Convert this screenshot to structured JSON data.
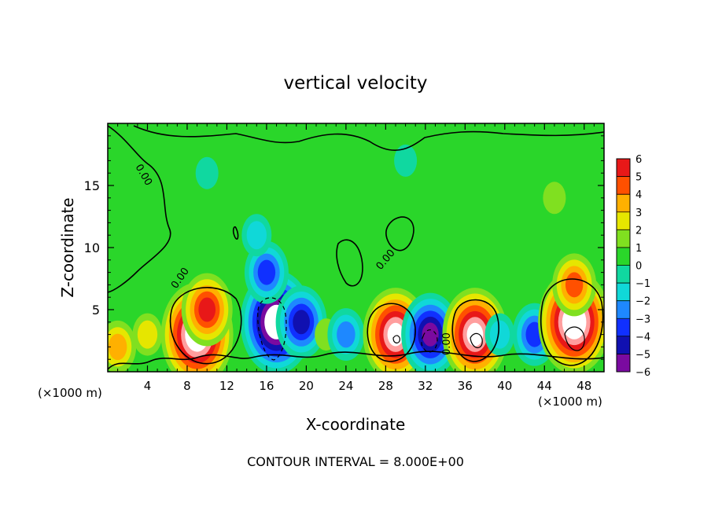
{
  "chart_data": {
    "type": "heatmap",
    "title": "vertical velocity",
    "xlabel": "X-coordinate",
    "ylabel": "Z-coordinate",
    "x_unit_left": "(×1000 m)",
    "x_unit_right": "(×1000 m)",
    "xlim": [
      0,
      50
    ],
    "ylim": [
      0,
      20
    ],
    "x_ticks": [
      4,
      8,
      12,
      16,
      20,
      24,
      28,
      32,
      36,
      40,
      44,
      48
    ],
    "x_tick_labels": [
      "4",
      "8",
      "12",
      "16",
      "20",
      "24",
      "28",
      "32",
      "36",
      "40",
      "44",
      "48"
    ],
    "y_ticks": [
      5,
      10,
      15
    ],
    "y_tick_labels": [
      "5",
      "10",
      "15"
    ],
    "colorbar": {
      "levels": [
        -6,
        -5,
        -4,
        -3,
        -2,
        -1,
        0,
        1,
        2,
        3,
        4,
        5,
        6
      ],
      "labels": [
        "−6",
        "−5",
        "−4",
        "−3",
        "−2",
        "−1",
        "0",
        "1",
        "2",
        "3",
        "4",
        "5",
        "6"
      ],
      "colors": [
        "#7a0aa0",
        "#1010b0",
        "#1030ff",
        "#1e88ff",
        "#10d8d8",
        "#10d8a0",
        "#2ad62a",
        "#80e020",
        "#e6e600",
        "#ffb000",
        "#ff5000",
        "#e81818",
        "#ff9e9e"
      ]
    },
    "contour_label": "0.00",
    "contour_interval_text": "CONTOUR INTERVAL = 8.000E+00",
    "cells": [
      {
        "x": 1,
        "z": 2,
        "w": 3
      },
      {
        "x": 4,
        "z": 3,
        "w": 2
      },
      {
        "x": 9,
        "z": 3,
        "w": 8
      },
      {
        "x": 10,
        "z": 5,
        "w": 5
      },
      {
        "x": 17,
        "z": 4,
        "w": -8
      },
      {
        "x": 16,
        "z": 8,
        "w": -4
      },
      {
        "x": 15,
        "z": 11,
        "w": -2
      },
      {
        "x": 19.5,
        "z": 4,
        "w": -5
      },
      {
        "x": 22,
        "z": 3,
        "w": 1
      },
      {
        "x": 24,
        "z": 3,
        "w": -3
      },
      {
        "x": 29,
        "z": 3,
        "w": 7
      },
      {
        "x": 32.5,
        "z": 3,
        "w": -6
      },
      {
        "x": 37,
        "z": 3,
        "w": 7
      },
      {
        "x": 39.5,
        "z": 3,
        "w": -2
      },
      {
        "x": 43,
        "z": 3,
        "w": -4
      },
      {
        "x": 47,
        "z": 4,
        "w": 8
      },
      {
        "x": 47,
        "z": 7,
        "w": 4
      },
      {
        "x": 10,
        "z": 16,
        "w": -1
      },
      {
        "x": 30,
        "z": 17,
        "w": -1
      },
      {
        "x": 45,
        "z": 14,
        "w": 1
      }
    ]
  }
}
